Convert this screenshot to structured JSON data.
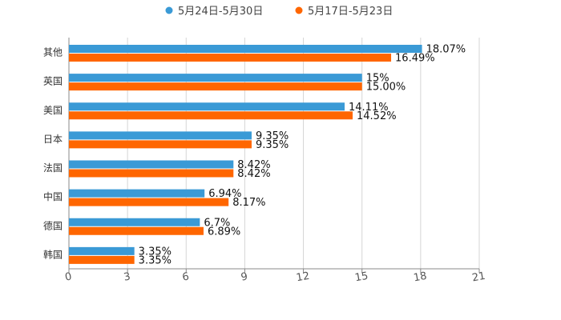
{
  "chart_data": {
    "type": "bar",
    "orientation": "horizontal",
    "categories": [
      "其他",
      "英国",
      "美国",
      "日本",
      "法国",
      "中国",
      "德国",
      "韩国"
    ],
    "series": [
      {
        "name": "5月24日-5月30日",
        "color": "#3a9ad6",
        "values": [
          18.07,
          15,
          14.11,
          9.35,
          8.42,
          6.94,
          6.7,
          3.35
        ],
        "labels": [
          "18.07%",
          "15%",
          "14.11%",
          "9.35%",
          "8.42%",
          "6.94%",
          "6.7%",
          "3.35%"
        ]
      },
      {
        "name": "5月17日-5月23日",
        "color": "#ff6600",
        "values": [
          16.49,
          15.0,
          14.52,
          9.35,
          8.42,
          8.17,
          6.89,
          3.35
        ],
        "labels": [
          "16.49%",
          "15.00%",
          "14.52%",
          "9.35%",
          "8.42%",
          "8.17%",
          "6.89%",
          "3.35%"
        ]
      }
    ],
    "xlim": [
      0,
      21
    ],
    "xticks": [
      0,
      3,
      6,
      9,
      12,
      15,
      18,
      21
    ],
    "grid": true,
    "legend": "top-center",
    "title": "",
    "xlabel": "",
    "ylabel": ""
  }
}
